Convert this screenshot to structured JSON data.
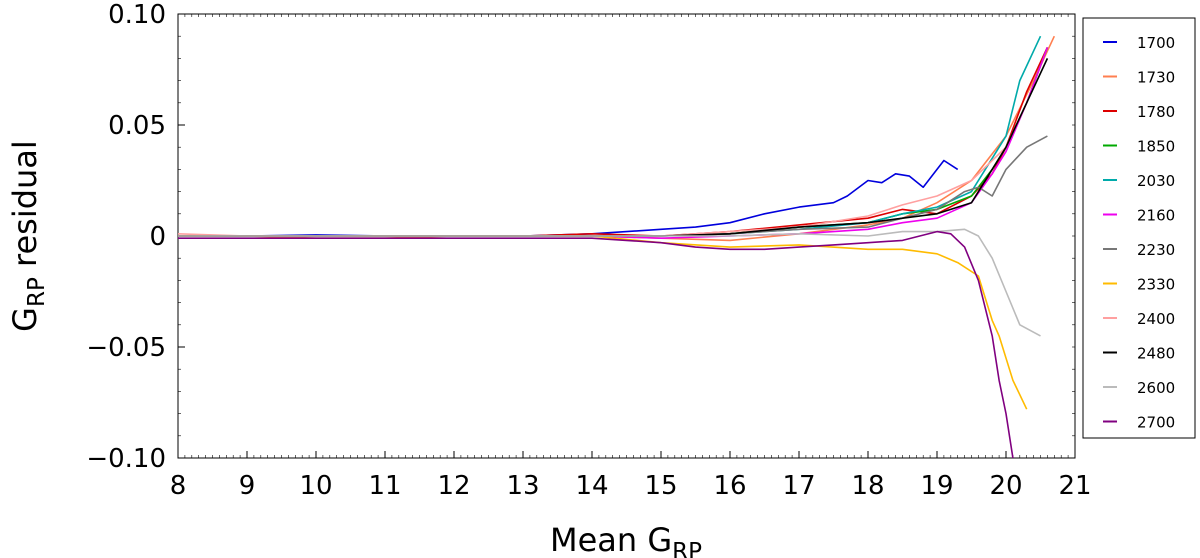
{
  "chart_data": {
    "type": "line",
    "xlabel": "Mean G",
    "xlabel_sub": "RP",
    "ylabel": "G",
    "ylabel_sub": "RP",
    "ylabel_suffix": " residual",
    "xlim": [
      8,
      21
    ],
    "ylim": [
      -0.1,
      0.1
    ],
    "xticks": [
      8,
      9,
      10,
      11,
      12,
      13,
      14,
      15,
      16,
      17,
      18,
      19,
      20,
      21
    ],
    "xtick_labels": [
      "8",
      "9",
      "10",
      "11",
      "12",
      "13",
      "14",
      "15",
      "16",
      "17",
      "18",
      "19",
      "20",
      "21"
    ],
    "yticks": [
      -0.1,
      -0.05,
      0,
      0.05,
      0.1
    ],
    "ytick_labels": [
      "−0.10",
      "−0.05",
      "0",
      "0.05",
      "0.10"
    ],
    "grid": false,
    "legend_position": "outside-right",
    "series": [
      {
        "name": "1700",
        "color": "#0000dd",
        "points": [
          [
            8,
            0.0
          ],
          [
            9,
            0.0
          ],
          [
            10,
            0.0005
          ],
          [
            11,
            0.0
          ],
          [
            12,
            0.0
          ],
          [
            13,
            0.0
          ],
          [
            14,
            0.001
          ],
          [
            14.5,
            0.002
          ],
          [
            15,
            0.003
          ],
          [
            15.5,
            0.004
          ],
          [
            16,
            0.006
          ],
          [
            16.5,
            0.01
          ],
          [
            17,
            0.013
          ],
          [
            17.5,
            0.015
          ],
          [
            17.7,
            0.018
          ],
          [
            18,
            0.025
          ],
          [
            18.2,
            0.024
          ],
          [
            18.4,
            0.028
          ],
          [
            18.6,
            0.027
          ],
          [
            18.8,
            0.022
          ],
          [
            19,
            0.03
          ],
          [
            19.1,
            0.034
          ],
          [
            19.3,
            0.03
          ]
        ]
      },
      {
        "name": "1730",
        "color": "#ff7f50",
        "points": [
          [
            8,
            0.0
          ],
          [
            9,
            0.0
          ],
          [
            10,
            -0.001
          ],
          [
            11,
            -0.001
          ],
          [
            12,
            0.0
          ],
          [
            13,
            0.0
          ],
          [
            14,
            0.0
          ],
          [
            15,
            -0.001
          ],
          [
            16,
            -0.002
          ],
          [
            17,
            0.001
          ],
          [
            18,
            0.005
          ],
          [
            18.5,
            0.008
          ],
          [
            19,
            0.015
          ],
          [
            19.5,
            0.025
          ],
          [
            20,
            0.045
          ],
          [
            20.4,
            0.07
          ],
          [
            20.7,
            0.09
          ]
        ]
      },
      {
        "name": "1780",
        "color": "#dd0000",
        "points": [
          [
            8,
            0.0
          ],
          [
            9,
            0.0
          ],
          [
            10,
            0.0
          ],
          [
            11,
            0.0
          ],
          [
            12,
            0.0
          ],
          [
            13,
            0.0
          ],
          [
            14,
            0.001
          ],
          [
            15,
            0.0
          ],
          [
            16,
            0.002
          ],
          [
            17,
            0.005
          ],
          [
            18,
            0.008
          ],
          [
            18.5,
            0.012
          ],
          [
            19,
            0.01
          ],
          [
            19.5,
            0.018
          ],
          [
            19.8,
            0.028
          ],
          [
            20,
            0.04
          ],
          [
            20.3,
            0.065
          ],
          [
            20.6,
            0.085
          ]
        ]
      },
      {
        "name": "1850",
        "color": "#00aa00",
        "points": [
          [
            8,
            0.0
          ],
          [
            9,
            0.0
          ],
          [
            10,
            0.0
          ],
          [
            11,
            0.0
          ],
          [
            12,
            0.0
          ],
          [
            13,
            0.0
          ],
          [
            14,
            0.0
          ],
          [
            15,
            0.0
          ],
          [
            16,
            0.001
          ],
          [
            17,
            0.004
          ],
          [
            18,
            0.006
          ],
          [
            18.5,
            0.01
          ],
          [
            19,
            0.012
          ],
          [
            19.5,
            0.018
          ],
          [
            19.8,
            0.03
          ],
          [
            20,
            0.04
          ],
          [
            20.3,
            0.06
          ],
          [
            20.6,
            0.085
          ]
        ]
      },
      {
        "name": "2030",
        "color": "#00aaaa",
        "points": [
          [
            8,
            0.0
          ],
          [
            9,
            0.0
          ],
          [
            10,
            0.0
          ],
          [
            11,
            0.0
          ],
          [
            12,
            0.0
          ],
          [
            13,
            0.0
          ],
          [
            14,
            0.0
          ],
          [
            15,
            0.0
          ],
          [
            16,
            0.001
          ],
          [
            17,
            0.003
          ],
          [
            18,
            0.006
          ],
          [
            18.5,
            0.01
          ],
          [
            19,
            0.013
          ],
          [
            19.5,
            0.02
          ],
          [
            19.8,
            0.035
          ],
          [
            20,
            0.045
          ],
          [
            20.2,
            0.07
          ],
          [
            20.5,
            0.09
          ]
        ]
      },
      {
        "name": "2160",
        "color": "#ee00ee",
        "points": [
          [
            8,
            0.0
          ],
          [
            9,
            0.0
          ],
          [
            10,
            0.0
          ],
          [
            11,
            0.0
          ],
          [
            12,
            0.0
          ],
          [
            13,
            0.0
          ],
          [
            14,
            0.0
          ],
          [
            15,
            -0.001
          ],
          [
            16,
            0.0
          ],
          [
            17,
            0.001
          ],
          [
            18,
            0.003
          ],
          [
            18.5,
            0.006
          ],
          [
            19,
            0.008
          ],
          [
            19.5,
            0.015
          ],
          [
            19.8,
            0.028
          ],
          [
            20,
            0.038
          ],
          [
            20.3,
            0.06
          ],
          [
            20.6,
            0.085
          ]
        ]
      },
      {
        "name": "2230",
        "color": "#777777",
        "points": [
          [
            8,
            0.0
          ],
          [
            9,
            0.0
          ],
          [
            10,
            0.0
          ],
          [
            11,
            0.0
          ],
          [
            12,
            0.0
          ],
          [
            13,
            0.0
          ],
          [
            14,
            0.0
          ],
          [
            15,
            0.0
          ],
          [
            16,
            0.001
          ],
          [
            17,
            0.003
          ],
          [
            18,
            0.004
          ],
          [
            18.5,
            0.008
          ],
          [
            19,
            0.012
          ],
          [
            19.4,
            0.02
          ],
          [
            19.6,
            0.022
          ],
          [
            19.8,
            0.018
          ],
          [
            20,
            0.03
          ],
          [
            20.3,
            0.04
          ],
          [
            20.6,
            0.045
          ]
        ]
      },
      {
        "name": "2330",
        "color": "#ffbb00",
        "points": [
          [
            8,
            0.0
          ],
          [
            9,
            0.0
          ],
          [
            10,
            0.0
          ],
          [
            11,
            0.0
          ],
          [
            12,
            0.0
          ],
          [
            13,
            0.0
          ],
          [
            14,
            0.0
          ],
          [
            15,
            -0.003
          ],
          [
            16,
            -0.005
          ],
          [
            17,
            -0.004
          ],
          [
            18,
            -0.006
          ],
          [
            18.5,
            -0.006
          ],
          [
            19,
            -0.008
          ],
          [
            19.3,
            -0.012
          ],
          [
            19.6,
            -0.018
          ],
          [
            19.8,
            -0.038
          ],
          [
            19.9,
            -0.045
          ],
          [
            20.1,
            -0.065
          ],
          [
            20.3,
            -0.078
          ]
        ]
      },
      {
        "name": "2400",
        "color": "#ffa0a0",
        "points": [
          [
            8,
            0.001
          ],
          [
            9,
            0.0
          ],
          [
            10,
            0.0
          ],
          [
            11,
            0.0
          ],
          [
            12,
            0.0
          ],
          [
            13,
            0.0
          ],
          [
            14,
            0.0
          ],
          [
            15,
            0.0
          ],
          [
            16,
            0.002
          ],
          [
            17,
            0.004
          ],
          [
            18,
            0.009
          ],
          [
            18.5,
            0.014
          ],
          [
            19,
            0.018
          ],
          [
            19.5,
            0.025
          ],
          [
            20,
            0.04
          ],
          [
            20.3,
            0.06
          ]
        ]
      },
      {
        "name": "2480",
        "color": "#000000",
        "points": [
          [
            8,
            0.0
          ],
          [
            9,
            0.0
          ],
          [
            10,
            0.0
          ],
          [
            11,
            0.0
          ],
          [
            12,
            0.0
          ],
          [
            13,
            0.0
          ],
          [
            14,
            0.0
          ],
          [
            15,
            0.0
          ],
          [
            16,
            0.001
          ],
          [
            17,
            0.004
          ],
          [
            18,
            0.006
          ],
          [
            18.5,
            0.008
          ],
          [
            19,
            0.01
          ],
          [
            19.5,
            0.015
          ],
          [
            20,
            0.04
          ],
          [
            20.3,
            0.06
          ],
          [
            20.6,
            0.08
          ]
        ]
      },
      {
        "name": "2600",
        "color": "#bbbbbb",
        "points": [
          [
            8,
            0.0
          ],
          [
            9,
            0.0
          ],
          [
            10,
            0.0
          ],
          [
            11,
            0.0
          ],
          [
            12,
            0.0
          ],
          [
            13,
            0.0
          ],
          [
            14,
            0.0
          ],
          [
            15,
            0.0
          ],
          [
            16,
            0.0
          ],
          [
            17,
            0.001
          ],
          [
            18,
            0.0
          ],
          [
            18.5,
            0.002
          ],
          [
            19,
            0.002
          ],
          [
            19.4,
            0.003
          ],
          [
            19.6,
            0.0
          ],
          [
            19.8,
            -0.01
          ],
          [
            20,
            -0.025
          ],
          [
            20.2,
            -0.04
          ],
          [
            20.5,
            -0.045
          ]
        ]
      },
      {
        "name": "2700",
        "color": "#800080",
        "points": [
          [
            8,
            -0.001
          ],
          [
            9,
            -0.001
          ],
          [
            10,
            -0.001
          ],
          [
            11,
            -0.001
          ],
          [
            12,
            -0.001
          ],
          [
            13,
            -0.001
          ],
          [
            14,
            -0.001
          ],
          [
            14.5,
            -0.002
          ],
          [
            15,
            -0.003
          ],
          [
            15.5,
            -0.005
          ],
          [
            16,
            -0.006
          ],
          [
            16.5,
            -0.006
          ],
          [
            17,
            -0.005
          ],
          [
            17.5,
            -0.004
          ],
          [
            18,
            -0.003
          ],
          [
            18.5,
            -0.002
          ],
          [
            19,
            0.002
          ],
          [
            19.2,
            0.001
          ],
          [
            19.4,
            -0.005
          ],
          [
            19.6,
            -0.02
          ],
          [
            19.8,
            -0.045
          ],
          [
            19.9,
            -0.065
          ],
          [
            20,
            -0.08
          ],
          [
            20.1,
            -0.1
          ]
        ]
      }
    ]
  }
}
